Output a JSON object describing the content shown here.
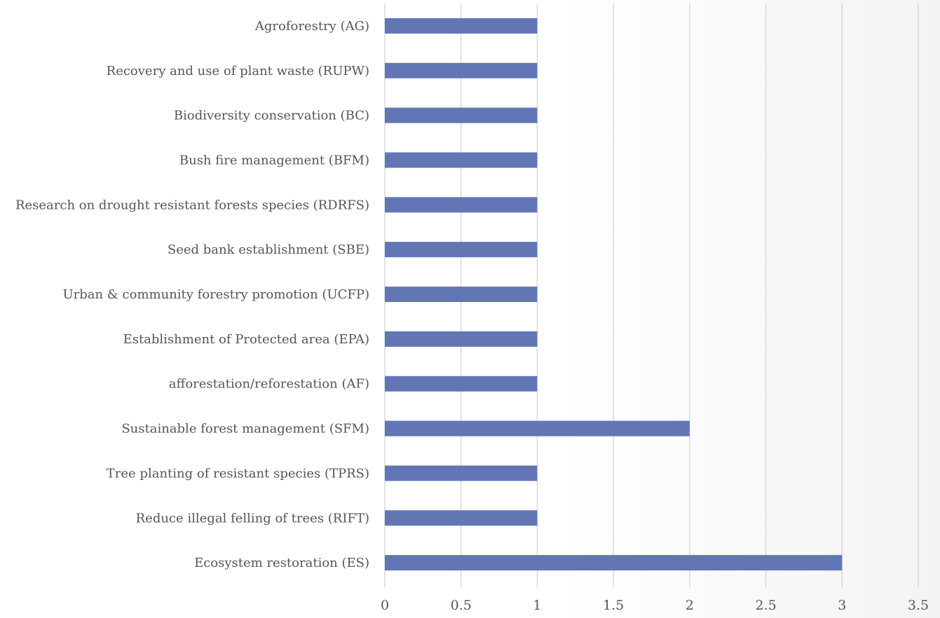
{
  "chart_data": {
    "type": "bar",
    "orientation": "horizontal",
    "title": "",
    "xlabel": "",
    "ylabel": "",
    "xlim": [
      0,
      3.5
    ],
    "x_ticks": [
      "0",
      "0.5",
      "1",
      "1.5",
      "2",
      "2.5",
      "3",
      "3.5"
    ],
    "x_tick_values": [
      0,
      0.5,
      1,
      1.5,
      2,
      2.5,
      3,
      3.5
    ],
    "grid": "vertical",
    "legend": "none",
    "bar_color": "#6276b6",
    "categories": [
      "Agroforestry (AG)",
      "Recovery and use of plant waste (RUPW)",
      "Biodiversity conservation (BC)",
      "Bush fire management (BFM)",
      "Research on drought resistant forests species (RDRFS)",
      "Seed bank establishment (SBE)",
      "Urban & community forestry promotion (UCFP)",
      "Establishment of Protected area (EPA)",
      "afforestation/reforestation (AF)",
      "Sustainable forest management (SFM)",
      "Tree planting of resistant species (TPRS)",
      "Reduce illegal felling of trees (RIFT)",
      "Ecosystem restoration (ES)"
    ],
    "values": [
      1,
      1,
      1,
      1,
      1,
      1,
      1,
      1,
      1,
      2,
      1,
      1,
      3
    ]
  }
}
